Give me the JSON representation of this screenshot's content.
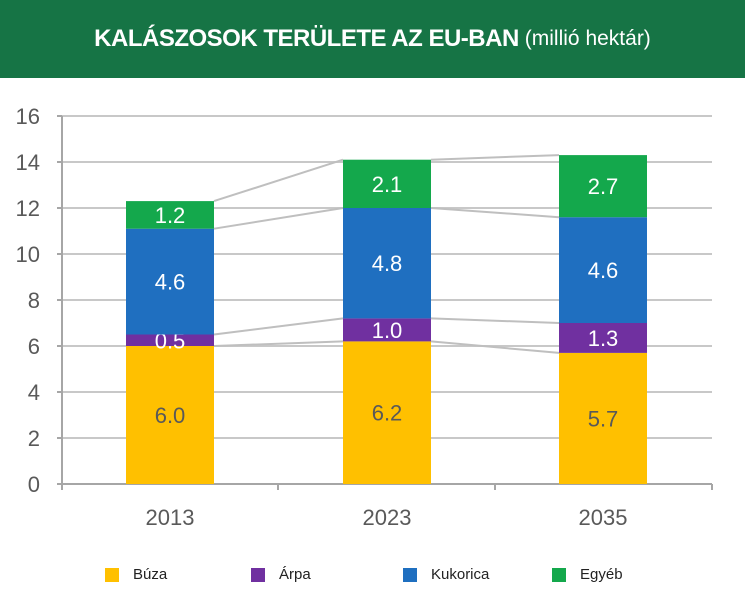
{
  "header": {
    "title": "KALÁSZOSOK TERÜLETE AZ EU-BAN",
    "subtitle": "(millió hektár)"
  },
  "chart_data": {
    "type": "bar",
    "stacked": true,
    "title": "KALÁSZOSOK TERÜLETE AZ EU-BAN (millió hektár)",
    "categories": [
      "2013",
      "2023",
      "2035"
    ],
    "series": [
      {
        "name": "Búza",
        "color": "#FFC000",
        "label_color": "#595959",
        "values": [
          6.0,
          6.2,
          5.7
        ]
      },
      {
        "name": "Árpa",
        "color": "#7030A0",
        "label_color": "#ffffff",
        "values": [
          0.5,
          1.0,
          1.3
        ]
      },
      {
        "name": "Kukorica",
        "color": "#1F6FC0",
        "label_color": "#ffffff",
        "values": [
          4.6,
          4.8,
          4.6
        ]
      },
      {
        "name": "Egyéb",
        "color": "#14A84C",
        "label_color": "#ffffff",
        "values": [
          1.2,
          2.1,
          2.7
        ]
      }
    ],
    "ylim": [
      0,
      16
    ],
    "yticks": [
      "0",
      "2",
      "4",
      "6",
      "8",
      "10",
      "12",
      "14",
      "16"
    ],
    "grid": true,
    "legend": "bottom",
    "connector_lines": true
  }
}
